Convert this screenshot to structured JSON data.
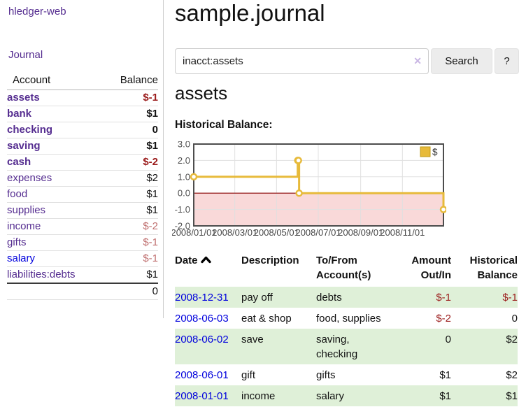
{
  "app": {
    "brand": "hledger-web",
    "nav_journal": "Journal",
    "title": "sample.journal"
  },
  "search": {
    "query": "inacct:assets",
    "clear_icon": "✕",
    "button_label": "Search",
    "help_label": "?"
  },
  "sidebar": {
    "headers": {
      "account": "Account",
      "balance": "Balance"
    },
    "accounts": [
      {
        "name": "assets",
        "balance": "$-1"
      },
      {
        "name": "bank",
        "balance": "$1"
      },
      {
        "name": "checking",
        "balance": "0"
      },
      {
        "name": "saving",
        "balance": "$1"
      },
      {
        "name": "cash",
        "balance": "$-2"
      },
      {
        "name": "expenses",
        "balance": "$2"
      },
      {
        "name": "food",
        "balance": "$1"
      },
      {
        "name": "supplies",
        "balance": "$1"
      },
      {
        "name": "income",
        "balance": "$-2"
      },
      {
        "name": "gifts",
        "balance": "$-1"
      },
      {
        "name": "salary",
        "balance": "$-1"
      },
      {
        "name": "liabilities:debts",
        "balance": "$1"
      }
    ],
    "total": "0"
  },
  "register": {
    "heading": "assets",
    "chart_label": "Historical Balance:",
    "table": {
      "headers": {
        "date": "Date",
        "description": "Description",
        "accounts": "To/From Account(s)",
        "amount": "Amount Out/In",
        "balance": "Historical Balance"
      },
      "rows": [
        {
          "date": "2008-12-31",
          "description": "pay off",
          "accounts": "debts",
          "amount": "$-1",
          "balance": "$-1"
        },
        {
          "date": "2008-06-03",
          "description": "eat & shop",
          "accounts": "food, supplies",
          "amount": "$-2",
          "balance": "0"
        },
        {
          "date": "2008-06-02",
          "description": "save",
          "accounts": "saving, checking",
          "amount": "0",
          "balance": "$2"
        },
        {
          "date": "2008-06-01",
          "description": "gift",
          "accounts": "gifts",
          "amount": "$1",
          "balance": "$2"
        },
        {
          "date": "2008-01-01",
          "description": "income",
          "accounts": "salary",
          "amount": "$1",
          "balance": "$1"
        }
      ]
    }
  },
  "chart_data": {
    "type": "line",
    "step": true,
    "title": "Historical Balance:",
    "series": [
      {
        "name": "$",
        "color": "#e7ba3a",
        "points": [
          [
            "2008-01-01",
            1
          ],
          [
            "2008-06-01",
            2
          ],
          [
            "2008-06-02",
            2
          ],
          [
            "2008-06-03",
            0
          ],
          [
            "2008-12-31",
            -1
          ]
        ]
      }
    ],
    "x_range": [
      "2008-01-01",
      "2008-12-31"
    ],
    "ylim": [
      -2,
      3
    ],
    "yticks": [
      3,
      2,
      1,
      0,
      -1,
      -2
    ],
    "xticks": [
      "2008/01/01",
      "2008/03/01",
      "2008/05/01",
      "2008/07/01",
      "2008/09/01",
      "2008/11/01"
    ],
    "grid": true,
    "legend_position": "top-right",
    "negative_region_fill": "#f9d9d9",
    "zero_line_color": "#8b0000"
  },
  "colors": {
    "link_purple": "#552d90",
    "link_blue": "#0000dd",
    "negative_strong": "#9b1c1c",
    "negative_soft": "#bf6e6e",
    "row_green": "#dff0d8",
    "chart_gold": "#e7ba3a"
  }
}
